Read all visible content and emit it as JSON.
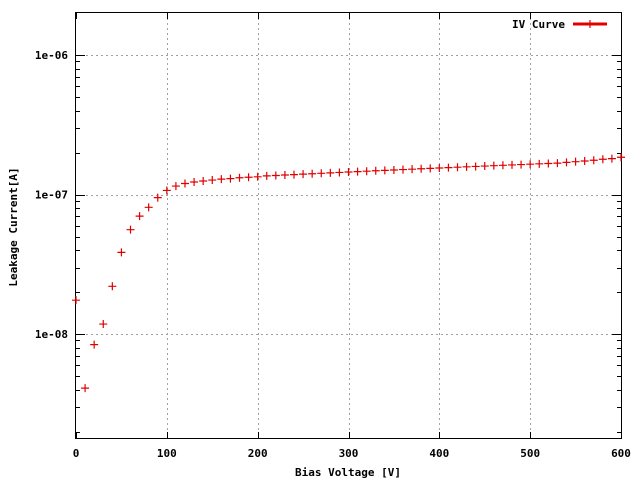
{
  "chart_data": {
    "type": "scatter",
    "xlabel": "Bias Voltage [V]",
    "ylabel": "Leakage Current[A]",
    "xlim": [
      0,
      600
    ],
    "ylim": [
      1.8e-09,
      2e-06
    ],
    "y_scale": "log",
    "grid": true,
    "legend_position": "top-right",
    "x_ticks": [
      0,
      100,
      200,
      300,
      400,
      500,
      600
    ],
    "x_tick_labels": [
      "0",
      "100",
      "200",
      "300",
      "400",
      "500",
      "600"
    ],
    "y_ticks": [
      1e-08,
      1e-07,
      1e-06
    ],
    "y_tick_labels": [
      "1e-08",
      "1e-07",
      "1e-06"
    ],
    "series": [
      {
        "name": "IV Curve",
        "color": "#e00000",
        "marker": "plus",
        "x": [
          0,
          10,
          20,
          30,
          40,
          50,
          60,
          70,
          80,
          90,
          100,
          110,
          120,
          130,
          140,
          150,
          160,
          170,
          180,
          190,
          200,
          210,
          220,
          230,
          240,
          250,
          260,
          270,
          280,
          290,
          300,
          310,
          320,
          330,
          340,
          350,
          360,
          370,
          380,
          390,
          400,
          410,
          420,
          430,
          440,
          450,
          460,
          470,
          480,
          490,
          500,
          510,
          520,
          530,
          540,
          550,
          560,
          570,
          580,
          590,
          600
        ],
        "y": [
          1.75e-08,
          4.1e-09,
          8.4e-09,
          1.18e-08,
          2.2e-08,
          3.85e-08,
          5.6e-08,
          7e-08,
          8.1e-08,
          9.5e-08,
          1.07e-07,
          1.15e-07,
          1.2e-07,
          1.23e-07,
          1.25e-07,
          1.27e-07,
          1.29e-07,
          1.3e-07,
          1.32e-07,
          1.33e-07,
          1.34e-07,
          1.36e-07,
          1.37e-07,
          1.38e-07,
          1.39e-07,
          1.4e-07,
          1.41e-07,
          1.42e-07,
          1.43e-07,
          1.44e-07,
          1.45e-07,
          1.46e-07,
          1.47e-07,
          1.48e-07,
          1.49e-07,
          1.5e-07,
          1.51e-07,
          1.52e-07,
          1.53e-07,
          1.54e-07,
          1.55e-07,
          1.56e-07,
          1.57e-07,
          1.58e-07,
          1.59e-07,
          1.6e-07,
          1.61e-07,
          1.62e-07,
          1.63e-07,
          1.64e-07,
          1.65e-07,
          1.66e-07,
          1.67e-07,
          1.68e-07,
          1.7e-07,
          1.72e-07,
          1.74e-07,
          1.76e-07,
          1.79e-07,
          1.81e-07,
          1.85e-07
        ]
      }
    ]
  }
}
